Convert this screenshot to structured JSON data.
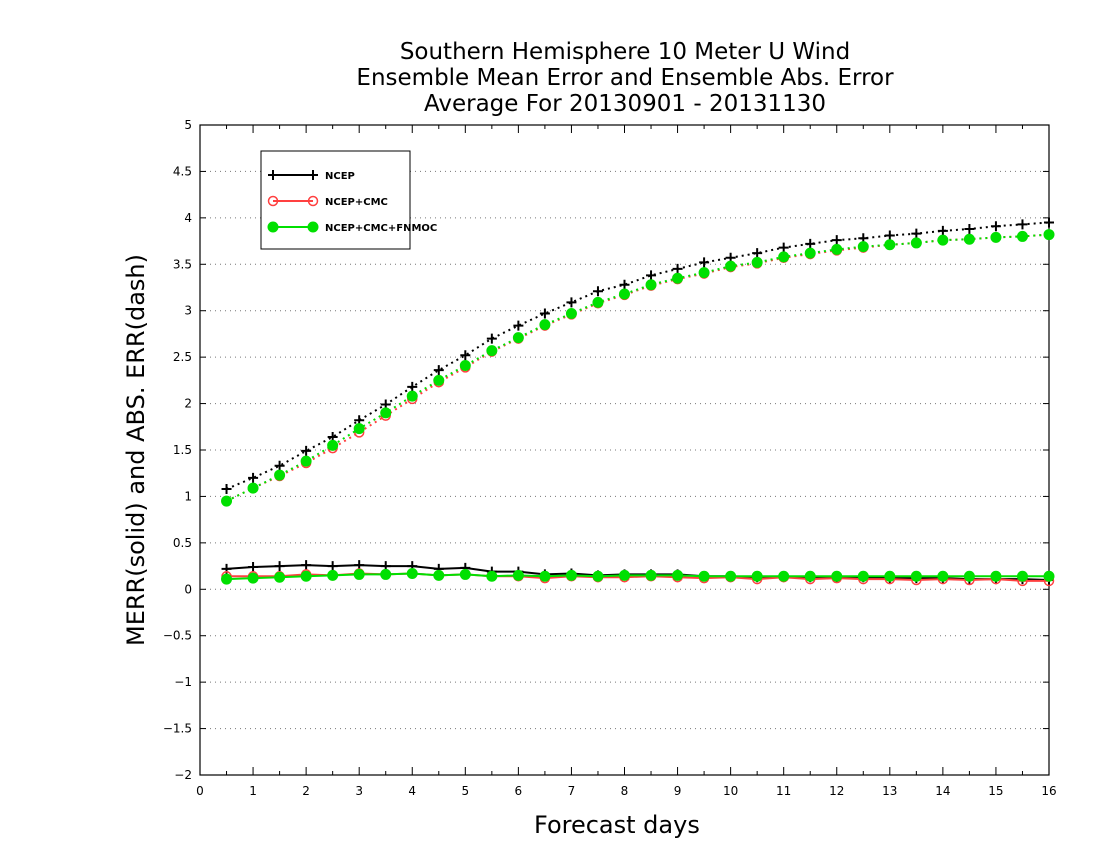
{
  "chart_data": {
    "type": "line",
    "title": [
      "Southern Hemisphere 10 Meter U Wind",
      "Ensemble Mean Error and Ensemble Abs. Error",
      "Average For 20130901 - 20131130"
    ],
    "xlabel": "Forecast days",
    "ylabel": "MERR(solid) and ABS. ERR(dash)",
    "xlim": [
      0,
      16
    ],
    "ylim": [
      -2,
      5
    ],
    "x_ticks": [
      0,
      1,
      2,
      3,
      4,
      5,
      6,
      7,
      8,
      9,
      10,
      11,
      12,
      13,
      14,
      15,
      16
    ],
    "y_ticks": [
      -2,
      -1.5,
      -1,
      -0.5,
      0,
      0.5,
      1,
      1.5,
      2,
      2.5,
      3,
      3.5,
      4,
      4.5,
      5
    ],
    "y_tick_labels": [
      "−2",
      "−1.5",
      "−1",
      "−0.5",
      "0",
      "0.5",
      "1",
      "1.5",
      "2",
      "2.5",
      "3",
      "3.5",
      "4",
      "4.5",
      "5"
    ],
    "grid": "horizontal-dotted",
    "legend_position": "top-left",
    "x": [
      0.5,
      1,
      1.5,
      2,
      2.5,
      3,
      3.5,
      4,
      4.5,
      5,
      5.5,
      6,
      6.5,
      7,
      7.5,
      8,
      8.5,
      9,
      9.5,
      10,
      10.5,
      11,
      11.5,
      12,
      12.5,
      13,
      13.5,
      14,
      14.5,
      15,
      15.5,
      16
    ],
    "series": [
      {
        "name": "NCEP",
        "color": "#000000",
        "marker": "plus",
        "abs_err": [
          1.08,
          1.2,
          1.33,
          1.49,
          1.64,
          1.82,
          1.99,
          2.18,
          2.36,
          2.52,
          2.7,
          2.84,
          2.97,
          3.09,
          3.21,
          3.28,
          3.38,
          3.45,
          3.52,
          3.57,
          3.62,
          3.68,
          3.72,
          3.76,
          3.78,
          3.81,
          3.83,
          3.86,
          3.88,
          3.91,
          3.93,
          3.95
        ],
        "mean_err": [
          0.22,
          0.24,
          0.25,
          0.26,
          0.25,
          0.26,
          0.25,
          0.25,
          0.22,
          0.23,
          0.19,
          0.19,
          0.16,
          0.17,
          0.15,
          0.16,
          0.16,
          0.16,
          0.14,
          0.14,
          0.13,
          0.14,
          0.13,
          0.13,
          0.13,
          0.12,
          0.12,
          0.12,
          0.11,
          0.11,
          0.11,
          0.1
        ]
      },
      {
        "name": "NCEP+CMC",
        "color": "#ff4040",
        "marker": "open-circle",
        "abs_err": [
          0.95,
          1.09,
          1.22,
          1.36,
          1.52,
          1.69,
          1.87,
          2.05,
          2.23,
          2.39,
          2.56,
          2.7,
          2.84,
          2.96,
          3.08,
          3.17,
          3.27,
          3.34,
          3.4,
          3.47,
          3.51,
          3.57,
          3.61,
          3.65,
          3.68,
          3.71,
          3.73,
          3.76,
          3.77,
          3.79,
          3.8,
          3.82
        ],
        "mean_err": [
          0.14,
          0.14,
          0.14,
          0.16,
          0.15,
          0.17,
          0.16,
          0.17,
          0.15,
          0.16,
          0.14,
          0.14,
          0.12,
          0.14,
          0.13,
          0.13,
          0.14,
          0.13,
          0.12,
          0.13,
          0.11,
          0.13,
          0.11,
          0.12,
          0.11,
          0.11,
          0.1,
          0.11,
          0.1,
          0.11,
          0.09,
          0.09
        ]
      },
      {
        "name": "NCEP+CMC+FNMOC",
        "color": "#00e000",
        "marker": "filled-circle",
        "abs_err": [
          0.95,
          1.09,
          1.23,
          1.38,
          1.55,
          1.73,
          1.9,
          2.08,
          2.25,
          2.41,
          2.57,
          2.71,
          2.85,
          2.97,
          3.09,
          3.18,
          3.28,
          3.35,
          3.41,
          3.48,
          3.52,
          3.58,
          3.62,
          3.66,
          3.69,
          3.71,
          3.73,
          3.76,
          3.77,
          3.79,
          3.8,
          3.82
        ],
        "mean_err": [
          0.11,
          0.12,
          0.13,
          0.14,
          0.15,
          0.16,
          0.16,
          0.17,
          0.15,
          0.16,
          0.14,
          0.15,
          0.14,
          0.15,
          0.14,
          0.15,
          0.15,
          0.15,
          0.14,
          0.14,
          0.14,
          0.14,
          0.14,
          0.14,
          0.14,
          0.14,
          0.14,
          0.14,
          0.14,
          0.14,
          0.14,
          0.14
        ]
      }
    ]
  }
}
